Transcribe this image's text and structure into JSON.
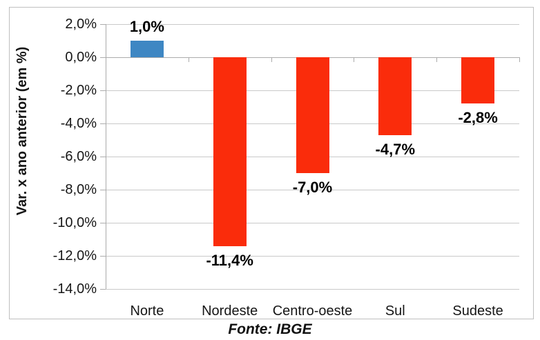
{
  "chart_data": {
    "type": "bar",
    "categories": [
      "Norte",
      "Nordeste",
      "Centro-oeste",
      "Sul",
      "Sudeste"
    ],
    "values": [
      1.0,
      -11.4,
      -7.0,
      -4.7,
      -2.8
    ],
    "data_labels": [
      "1,0%",
      "-11,4%",
      "-7,0%",
      "-4,7%",
      "-2,8%"
    ],
    "bar_colors": [
      "#3E87C3",
      "#FA2C0B",
      "#FA2C0B",
      "#FA2C0B",
      "#FA2C0B"
    ],
    "title": "",
    "xlabel": "",
    "ylabel": "Var. x ano anterior (em %)",
    "ylim": [
      -14,
      2
    ],
    "ytick_step": 2,
    "ytick_labels": [
      "2,0%",
      "0,0%",
      "-2,0%",
      "-4,0%",
      "-6,0%",
      "-8,0%",
      "-10,0%",
      "-12,0%",
      "-14,0%"
    ],
    "grid": "horizontal",
    "legend": "none",
    "source_note": "Fonte: IBGE"
  },
  "colors": {
    "positive_bar": "#3E87C3",
    "negative_bar": "#FA2C0B",
    "gridline": "#C9C9C9",
    "axis": "#ABABAB",
    "frame_border": "#BFBFBF",
    "text": "#161616"
  }
}
